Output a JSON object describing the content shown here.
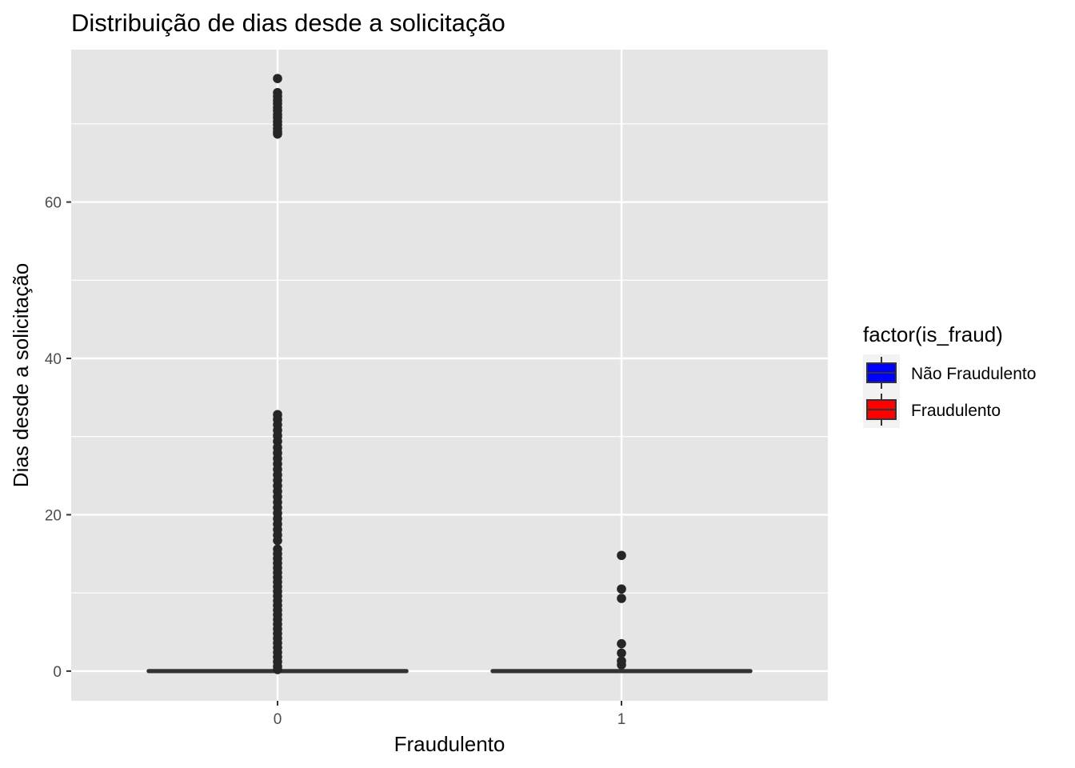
{
  "chart_data": {
    "type": "boxplot",
    "title": "Distribuição de dias desde a solicitação",
    "xlabel": "Fraudulento",
    "ylabel": "Dias desde a solicitação",
    "categories": [
      "0",
      "1"
    ],
    "y_ticks": [
      0,
      20,
      40,
      60
    ],
    "ylim": [
      -3.8,
      79.5
    ],
    "grid": true,
    "legend": {
      "title": "factor(is_fraud)",
      "placement": "right",
      "entries": [
        {
          "label": "Não Fraudulento",
          "color": "#0000FF"
        },
        {
          "label": "Fraudulento",
          "color": "#FF0000"
        }
      ]
    },
    "boxes": [
      {
        "category": "0",
        "q1": 0,
        "median": 0,
        "q3": 0,
        "whisker_low": 0,
        "whisker_high": 0
      },
      {
        "category": "1",
        "q1": 0,
        "median": 0,
        "q3": 0,
        "whisker_low": 0,
        "whisker_high": 0
      }
    ],
    "outliers": [
      {
        "category": "0",
        "values": [
          75.8,
          74.0,
          73.5,
          73.0,
          72.6,
          72.1,
          71.7,
          71.2,
          70.8,
          70.3,
          69.9,
          69.4,
          69.0,
          68.7,
          32.8,
          32.2,
          31.5,
          30.8,
          30.1,
          29.4,
          28.6,
          27.9,
          27.2,
          26.5,
          25.8,
          25.1,
          24.4,
          23.7,
          23.0,
          22.3,
          21.6,
          20.9,
          20.2,
          19.5,
          18.8,
          18.1,
          17.4,
          16.7,
          15.6,
          15.0,
          14.4,
          13.8,
          13.2,
          12.6,
          12.0,
          11.4,
          10.8,
          10.2,
          9.6,
          9.0,
          8.4,
          7.8,
          7.2,
          6.6,
          6.0,
          5.4,
          4.8,
          4.2,
          3.6,
          3.0,
          2.4,
          1.8,
          1.2,
          0.6,
          0.2
        ]
      },
      {
        "category": "1",
        "values": [
          14.8,
          10.5,
          9.3,
          3.5,
          2.3,
          1.3,
          0.8
        ]
      }
    ],
    "colors": {
      "panel_bg": "#E5E5E5",
      "grid": "#FFFFFF",
      "points": "#262626",
      "box_line": "#333333"
    }
  }
}
